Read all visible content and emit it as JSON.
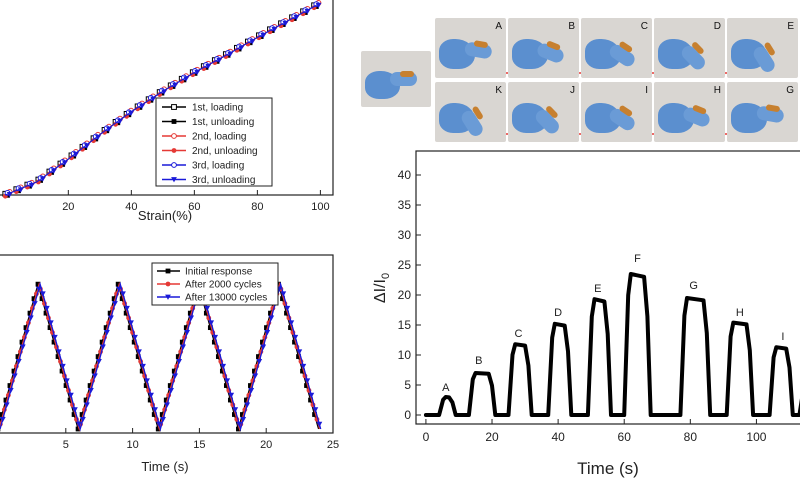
{
  "chart_data": [
    {
      "type": "line",
      "xlabel": "Strain(%)",
      "xticks": [
        20,
        40,
        60,
        80,
        100
      ],
      "xlim": [
        -2,
        104
      ],
      "ylim": [
        0,
        24
      ],
      "legend_position": "bottom-right",
      "series": [
        {
          "name": "1st, loading",
          "color": "#000000",
          "marker": "square-open"
        },
        {
          "name": "1st, unloading",
          "color": "#000000",
          "marker": "square-filled"
        },
        {
          "name": "2nd, loading",
          "color": "#e53935",
          "marker": "circle-open"
        },
        {
          "name": "2nd, unloading",
          "color": "#e53935",
          "marker": "circle-filled"
        },
        {
          "name": "3rd, loading",
          "color": "#1a1ad9",
          "marker": "circle-open"
        },
        {
          "name": "3rd, unloading",
          "color": "#1a1ad9",
          "marker": "triangle-filled"
        }
      ],
      "x": [
        0,
        10,
        20,
        30,
        40,
        50,
        60,
        70,
        80,
        90,
        100
      ],
      "y": [
        0.0,
        1.6,
        4.4,
        7.4,
        10.2,
        12.7,
        15.0,
        17.1,
        19.3,
        21.4,
        23.5
      ]
    },
    {
      "type": "line",
      "xlabel": "Time (s)",
      "xticks": [
        5,
        10,
        15,
        20,
        25
      ],
      "xlim": [
        0,
        25
      ],
      "ylim": [
        0,
        24
      ],
      "legend_position": "top-right",
      "series": [
        {
          "name": "Initial response",
          "color": "#000000",
          "marker": "square-filled"
        },
        {
          "name": "After 2000 cycles",
          "color": "#e53935",
          "marker": "circle-filled"
        },
        {
          "name": "After 13000 cycles",
          "color": "#1a1ad9",
          "marker": "triangle-filled"
        }
      ],
      "period": 6,
      "cycles": 4,
      "peaks_at": [
        3,
        9,
        15,
        21
      ],
      "valleys_at": [
        0,
        6,
        12,
        18,
        24
      ],
      "peak_value": 22,
      "valley_value": 0
    },
    {
      "type": "line",
      "xlabel": "Time (s)",
      "ylabel": "ΔI/I",
      "ylabel_subscript": "0",
      "xticks": [
        0,
        20,
        40,
        60,
        80,
        100
      ],
      "yticks": [
        0,
        5,
        10,
        15,
        20,
        25,
        30,
        35,
        40
      ],
      "xlim": [
        -3,
        115
      ],
      "ylim": [
        -1.5,
        44
      ],
      "series": [
        {
          "name": "",
          "color": "#000000"
        }
      ],
      "annotations": [
        {
          "text": "A",
          "x": 6,
          "y": 4
        },
        {
          "text": "B",
          "x": 16,
          "y": 8.5
        },
        {
          "text": "C",
          "x": 28,
          "y": 13
        },
        {
          "text": "D",
          "x": 40,
          "y": 16.5
        },
        {
          "text": "E",
          "x": 52,
          "y": 20.5
        },
        {
          "text": "F",
          "x": 64,
          "y": 25.5
        },
        {
          "text": "G",
          "x": 81,
          "y": 21
        },
        {
          "text": "H",
          "x": 95,
          "y": 16.5
        },
        {
          "text": "I",
          "x": 108,
          "y": 12.5
        }
      ],
      "steps": [
        {
          "start": 4,
          "end": 8,
          "value": 3
        },
        {
          "start": 13,
          "end": 20,
          "value": 7
        },
        {
          "start": 25,
          "end": 31,
          "value": 11.8
        },
        {
          "start": 37,
          "end": 43,
          "value": 15.2
        },
        {
          "start": 49,
          "end": 55,
          "value": 19.3
        },
        {
          "start": 60,
          "end": 67,
          "value": 23.5
        },
        {
          "start": 77,
          "end": 85,
          "value": 19.5
        },
        {
          "start": 91,
          "end": 98,
          "value": 15.4
        },
        {
          "start": 104,
          "end": 110,
          "value": 11.3
        }
      ]
    }
  ],
  "photos": {
    "top_row": [
      "A",
      "B",
      "C",
      "D",
      "E"
    ],
    "bottom_row": [
      "K",
      "J",
      "I",
      "H",
      "G"
    ]
  },
  "colors": {
    "arrow": "#e53935",
    "photo_bg": "#d9d6d2",
    "glove": "#5b8fcf",
    "sensor": "#c7802f"
  }
}
